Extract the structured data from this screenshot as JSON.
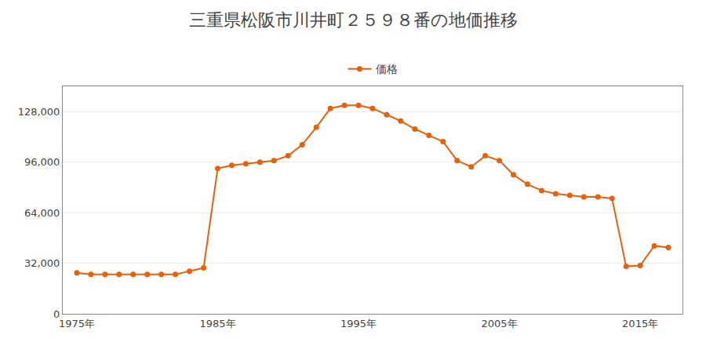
{
  "chart_data": {
    "type": "line",
    "title": "三重県松阪市川井町２５９８番の地価推移",
    "x": [
      1975,
      1976,
      1977,
      1978,
      1979,
      1980,
      1981,
      1982,
      1983,
      1984,
      1985,
      1986,
      1987,
      1988,
      1989,
      1990,
      1991,
      1992,
      1993,
      1994,
      1995,
      1996,
      1997,
      1998,
      1999,
      2000,
      2001,
      2002,
      2003,
      2004,
      2005,
      2006,
      2007,
      2008,
      2009,
      2010,
      2011,
      2012,
      2013,
      2014,
      2015,
      2016,
      2017
    ],
    "series": [
      {
        "name": "価格",
        "color": "#E8610A",
        "marker": "circle",
        "values": [
          26000,
          25000,
          25000,
          25000,
          25000,
          25000,
          25000,
          25000,
          27000,
          29000,
          92000,
          94000,
          95000,
          96000,
          97000,
          100000,
          107000,
          118000,
          130000,
          132000,
          132000,
          130000,
          126000,
          122000,
          117000,
          113000,
          109000,
          97000,
          93000,
          100000,
          97000,
          88000,
          82000,
          78000,
          76000,
          75000,
          74000,
          74000,
          73000,
          30000,
          30500,
          43000,
          42000
        ]
      }
    ],
    "xlim": [
      1974,
      2018
    ],
    "ylim": [
      0,
      144000
    ],
    "xticks": [
      {
        "value": 1975,
        "label": "1975年"
      },
      {
        "value": 1985,
        "label": "1985年"
      },
      {
        "value": 1995,
        "label": "1995年"
      },
      {
        "value": 2005,
        "label": "2005年"
      },
      {
        "value": 2015,
        "label": "2015年"
      }
    ],
    "yticks": [
      0,
      {
        "value": 32000,
        "label": "32,000"
      },
      {
        "value": 64000,
        "label": "64,000"
      },
      {
        "value": 96000,
        "label": "96,000"
      },
      {
        "value": 128000,
        "label": "128,000"
      }
    ],
    "grid": "y",
    "legend": "top"
  }
}
